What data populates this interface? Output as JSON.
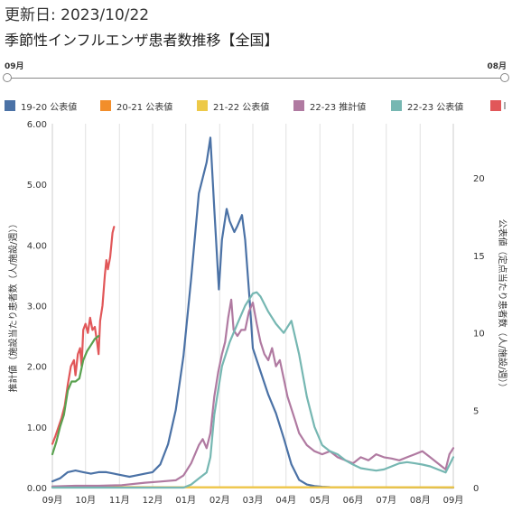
{
  "header": {
    "updated_label": "更新日:",
    "updated_date": "2023/10/22",
    "title": "季節性インフルエンザ患者数推移【全国】"
  },
  "slider": {
    "start_label": "09月",
    "end_label": "08月"
  },
  "colors": {
    "s1920": "#4b72a6",
    "s2021": "#f28e2b",
    "s2122": "#edc948",
    "s2223e": "#b07aa1",
    "s2223p": "#76b7b2",
    "red": "#e15759",
    "green": "#59a14f"
  },
  "chart_data": {
    "type": "line",
    "title": "",
    "xlabel": "",
    "ylabel_left": "推計値（施設当たり患者数（人/施設/週））",
    "ylabel_right": "公表値（定点当たり患者数（人/施設/週））",
    "y_left_range": [
      0,
      6
    ],
    "y_right_range": [
      0,
      23.5
    ],
    "x_range": [
      0,
      52
    ],
    "x_tick_labels": [
      "09月",
      "10月",
      "11月",
      "12月",
      "01月",
      "02月",
      "03月",
      "04月",
      "05月",
      "06月",
      "07月",
      "08月",
      "09月"
    ],
    "x_tick_positions": [
      0,
      4.3,
      8.7,
      13,
      17.3,
      21.7,
      26,
      30.3,
      34.7,
      39,
      43.3,
      47.7,
      52
    ],
    "y_left_ticks": [
      "0.00",
      "1.00",
      "2.00",
      "3.00",
      "4.00",
      "5.00",
      "6.00"
    ],
    "y_right_ticks": [
      "0",
      "5",
      "10",
      "15",
      "20"
    ],
    "legend": [
      {
        "label": "19-20 公表値",
        "color_key": "s1920"
      },
      {
        "label": "20-21 公表値",
        "color_key": "s2021"
      },
      {
        "label": "21-22 公表値",
        "color_key": "s2122"
      },
      {
        "label": "22-23 推計値",
        "color_key": "s2223e"
      },
      {
        "label": "22-23 公表値",
        "color_key": "s2223p"
      }
    ],
    "series": [
      {
        "name": "19-20 公表値",
        "axis": "right",
        "color_key": "s1920",
        "points": [
          [
            0,
            0.4
          ],
          [
            1,
            0.6
          ],
          [
            2,
            1.0
          ],
          [
            3,
            1.1
          ],
          [
            4,
            1.0
          ],
          [
            5,
            0.9
          ],
          [
            6,
            1.0
          ],
          [
            7,
            1.0
          ],
          [
            8,
            0.9
          ],
          [
            9,
            0.8
          ],
          [
            10,
            0.7
          ],
          [
            11,
            0.8
          ],
          [
            12,
            0.9
          ],
          [
            13,
            1.0
          ],
          [
            14,
            1.5
          ],
          [
            15,
            2.8
          ],
          [
            16,
            5.0
          ],
          [
            17,
            8.5
          ],
          [
            18,
            13.5
          ],
          [
            19,
            19.0
          ],
          [
            20,
            21.0
          ],
          [
            20.5,
            22.6
          ],
          [
            21,
            18.0
          ],
          [
            21.6,
            12.8
          ],
          [
            22,
            16.0
          ],
          [
            22.6,
            18.0
          ],
          [
            23,
            17.2
          ],
          [
            23.6,
            16.5
          ],
          [
            24,
            16.9
          ],
          [
            24.6,
            17.6
          ],
          [
            25,
            16.0
          ],
          [
            25.6,
            12.0
          ],
          [
            26,
            9.0
          ],
          [
            27,
            7.5
          ],
          [
            28,
            6.0
          ],
          [
            29,
            4.8
          ],
          [
            30,
            3.2
          ],
          [
            31,
            1.5
          ],
          [
            32,
            0.5
          ],
          [
            33,
            0.2
          ],
          [
            34,
            0.1
          ],
          [
            35,
            0.05
          ],
          [
            36,
            0.03
          ],
          [
            52,
            0.0
          ]
        ]
      },
      {
        "name": "20-21 公表値",
        "axis": "right",
        "color_key": "s2021",
        "points": [
          [
            0,
            0.05
          ],
          [
            10,
            0.03
          ],
          [
            20,
            0.02
          ],
          [
            30,
            0.02
          ],
          [
            40,
            0.02
          ],
          [
            52,
            0.02
          ]
        ]
      },
      {
        "name": "21-22 公表値",
        "axis": "right",
        "color_key": "s2122",
        "points": [
          [
            0,
            0.02
          ],
          [
            10,
            0.02
          ],
          [
            20,
            0.02
          ],
          [
            30,
            0.02
          ],
          [
            40,
            0.02
          ],
          [
            52,
            0.02
          ]
        ]
      },
      {
        "name": "22-23 推計値",
        "axis": "left",
        "color_key": "s2223e",
        "points": [
          [
            0,
            0.02
          ],
          [
            3,
            0.03
          ],
          [
            6,
            0.03
          ],
          [
            9,
            0.04
          ],
          [
            12,
            0.08
          ],
          [
            14,
            0.1
          ],
          [
            16,
            0.12
          ],
          [
            17,
            0.2
          ],
          [
            18,
            0.4
          ],
          [
            19,
            0.7
          ],
          [
            19.5,
            0.8
          ],
          [
            20,
            0.65
          ],
          [
            20.5,
            0.9
          ],
          [
            21,
            1.5
          ],
          [
            21.5,
            1.9
          ],
          [
            22,
            2.2
          ],
          [
            22.4,
            2.4
          ],
          [
            22.8,
            2.8
          ],
          [
            23.2,
            3.1
          ],
          [
            23.5,
            2.6
          ],
          [
            24,
            2.5
          ],
          [
            24.5,
            2.6
          ],
          [
            25,
            2.6
          ],
          [
            25.5,
            2.9
          ],
          [
            26,
            3.05
          ],
          [
            26.5,
            2.7
          ],
          [
            27,
            2.4
          ],
          [
            27.5,
            2.2
          ],
          [
            28,
            2.1
          ],
          [
            28.5,
            2.3
          ],
          [
            29,
            2.0
          ],
          [
            29.5,
            2.1
          ],
          [
            30,
            1.8
          ],
          [
            30.5,
            1.5
          ],
          [
            31,
            1.3
          ],
          [
            31.5,
            1.1
          ],
          [
            32,
            0.9
          ],
          [
            32.5,
            0.8
          ],
          [
            33,
            0.7
          ],
          [
            34,
            0.6
          ],
          [
            35,
            0.55
          ],
          [
            36,
            0.6
          ],
          [
            37,
            0.5
          ],
          [
            38,
            0.45
          ],
          [
            39,
            0.4
          ],
          [
            40,
            0.5
          ],
          [
            41,
            0.45
          ],
          [
            42,
            0.55
          ],
          [
            43,
            0.5
          ],
          [
            44,
            0.48
          ],
          [
            45,
            0.45
          ],
          [
            46,
            0.5
          ],
          [
            47,
            0.55
          ],
          [
            48,
            0.6
          ],
          [
            49,
            0.5
          ],
          [
            50,
            0.4
          ],
          [
            51,
            0.3
          ],
          [
            51.5,
            0.55
          ],
          [
            52,
            0.65
          ]
        ]
      },
      {
        "name": "22-23 公表値",
        "axis": "left",
        "color_key": "s2223p",
        "points": [
          [
            0,
            0.0
          ],
          [
            10,
            0.0
          ],
          [
            17,
            0.0
          ],
          [
            18,
            0.05
          ],
          [
            19,
            0.15
          ],
          [
            20,
            0.25
          ],
          [
            20.5,
            0.5
          ],
          [
            21,
            1.2
          ],
          [
            22,
            2.0
          ],
          [
            23,
            2.4
          ],
          [
            24,
            2.7
          ],
          [
            25,
            3.0
          ],
          [
            26,
            3.2
          ],
          [
            26.5,
            3.22
          ],
          [
            27,
            3.15
          ],
          [
            28,
            2.9
          ],
          [
            29,
            2.7
          ],
          [
            30,
            2.55
          ],
          [
            31,
            2.75
          ],
          [
            32,
            2.2
          ],
          [
            33,
            1.5
          ],
          [
            34,
            1.0
          ],
          [
            35,
            0.7
          ],
          [
            36,
            0.6
          ],
          [
            37,
            0.55
          ],
          [
            38,
            0.45
          ],
          [
            39,
            0.38
          ],
          [
            40,
            0.32
          ],
          [
            41,
            0.3
          ],
          [
            42,
            0.28
          ],
          [
            43,
            0.3
          ],
          [
            44,
            0.35
          ],
          [
            45,
            0.4
          ],
          [
            46,
            0.42
          ],
          [
            47,
            0.4
          ],
          [
            48,
            0.38
          ],
          [
            49,
            0.35
          ],
          [
            50,
            0.3
          ],
          [
            51,
            0.25
          ],
          [
            52,
            0.5
          ]
        ]
      },
      {
        "axis": "left",
        "color_key": "red",
        "points": [
          [
            0,
            0.72
          ],
          [
            0.4,
            0.85
          ],
          [
            0.8,
            1.0
          ],
          [
            1.2,
            1.15
          ],
          [
            1.6,
            1.35
          ],
          [
            2.0,
            1.7
          ],
          [
            2.4,
            2.0
          ],
          [
            2.8,
            2.1
          ],
          [
            3.0,
            1.85
          ],
          [
            3.3,
            2.2
          ],
          [
            3.6,
            2.3
          ],
          [
            3.8,
            2.0
          ],
          [
            4.0,
            2.6
          ],
          [
            4.3,
            2.7
          ],
          [
            4.6,
            2.55
          ],
          [
            4.9,
            2.8
          ],
          [
            5.2,
            2.6
          ],
          [
            5.5,
            2.65
          ],
          [
            5.8,
            2.4
          ],
          [
            6.0,
            2.2
          ],
          [
            6.2,
            2.75
          ],
          [
            6.5,
            3.0
          ],
          [
            6.8,
            3.5
          ],
          [
            7.0,
            3.75
          ],
          [
            7.2,
            3.6
          ],
          [
            7.5,
            3.8
          ],
          [
            7.8,
            4.2
          ],
          [
            8.0,
            4.3
          ]
        ]
      },
      {
        "axis": "left",
        "color_key": "green",
        "points": [
          [
            0,
            0.55
          ],
          [
            0.5,
            0.75
          ],
          [
            1.0,
            1.0
          ],
          [
            1.5,
            1.2
          ],
          [
            2.0,
            1.6
          ],
          [
            2.5,
            1.75
          ],
          [
            3.0,
            1.75
          ],
          [
            3.5,
            1.8
          ],
          [
            4.0,
            2.1
          ],
          [
            4.5,
            2.25
          ],
          [
            5.0,
            2.35
          ],
          [
            5.5,
            2.45
          ],
          [
            6.0,
            2.5
          ]
        ]
      }
    ]
  }
}
